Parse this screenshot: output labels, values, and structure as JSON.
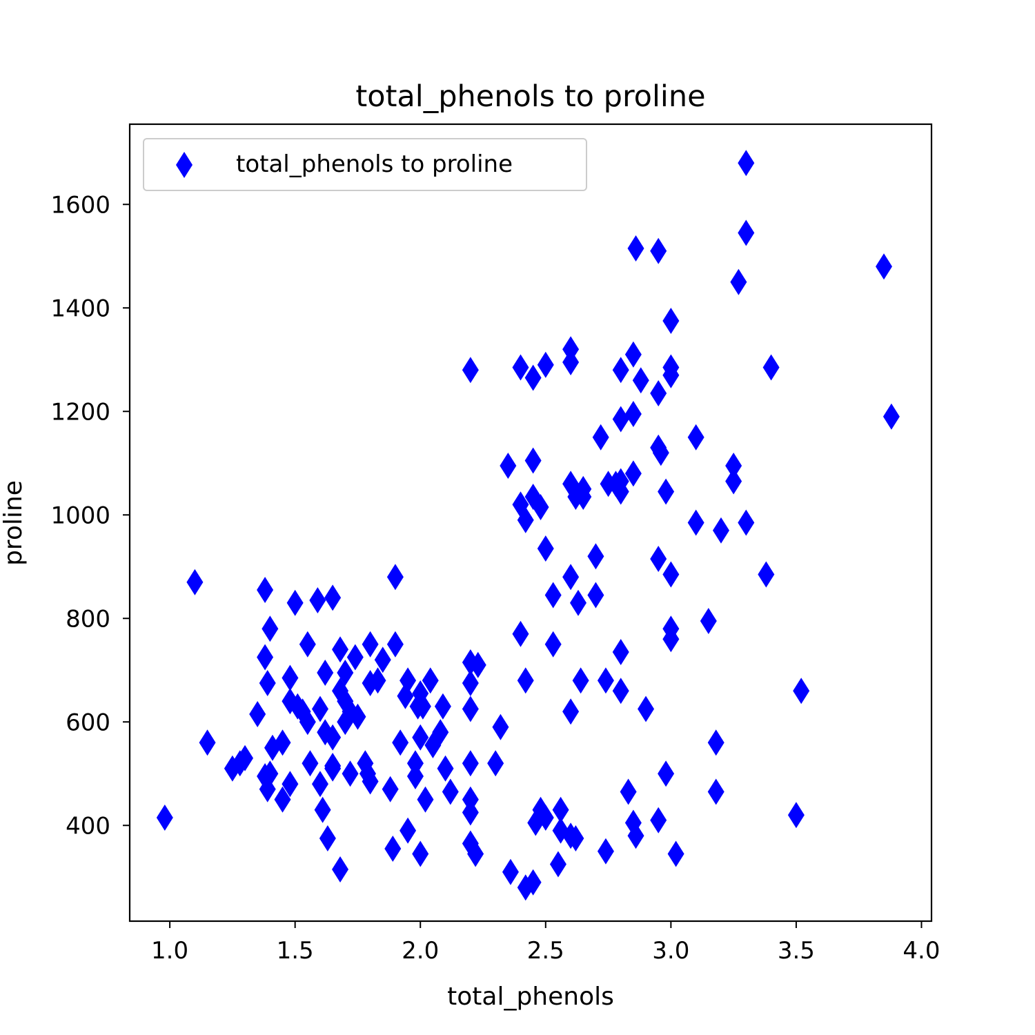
{
  "chart_data": {
    "type": "scatter",
    "title": "total_phenols to proline",
    "xlabel": "total_phenols",
    "ylabel": "proline",
    "xlim": [
      0.84,
      4.04
    ],
    "ylim": [
      215,
      1755
    ],
    "xticks": [
      1.0,
      1.5,
      2.0,
      2.5,
      3.0,
      3.5,
      4.0
    ],
    "xtick_labels": [
      "1.0",
      "1.5",
      "2.0",
      "2.5",
      "3.0",
      "3.5",
      "4.0"
    ],
    "yticks": [
      400,
      600,
      800,
      1000,
      1200,
      1400,
      1600
    ],
    "ytick_labels": [
      "400",
      "600",
      "800",
      "1000",
      "1200",
      "1400",
      "1600"
    ],
    "grid": false,
    "legend": {
      "position": "top-left"
    },
    "series": [
      {
        "name": "total_phenols to proline",
        "marker": "thin_diamond",
        "color": "#0000ff",
        "points": [
          [
            0.98,
            415
          ],
          [
            1.1,
            870
          ],
          [
            1.15,
            560
          ],
          [
            1.25,
            510
          ],
          [
            1.28,
            520
          ],
          [
            1.3,
            530
          ],
          [
            1.35,
            615
          ],
          [
            1.38,
            855
          ],
          [
            1.38,
            725
          ],
          [
            1.39,
            675
          ],
          [
            1.38,
            495
          ],
          [
            1.39,
            470
          ],
          [
            1.4,
            780
          ],
          [
            1.4,
            500
          ],
          [
            1.41,
            550
          ],
          [
            1.45,
            560
          ],
          [
            1.45,
            450
          ],
          [
            1.48,
            685
          ],
          [
            1.48,
            640
          ],
          [
            1.48,
            480
          ],
          [
            1.5,
            830
          ],
          [
            1.51,
            630
          ],
          [
            1.53,
            620
          ],
          [
            1.55,
            600
          ],
          [
            1.55,
            750
          ],
          [
            1.56,
            520
          ],
          [
            1.59,
            835
          ],
          [
            1.6,
            625
          ],
          [
            1.6,
            480
          ],
          [
            1.61,
            430
          ],
          [
            1.62,
            695
          ],
          [
            1.62,
            580
          ],
          [
            1.63,
            375
          ],
          [
            1.65,
            840
          ],
          [
            1.65,
            570
          ],
          [
            1.65,
            515
          ],
          [
            1.65,
            510
          ],
          [
            1.68,
            740
          ],
          [
            1.68,
            660
          ],
          [
            1.68,
            315
          ],
          [
            1.7,
            695
          ],
          [
            1.7,
            640
          ],
          [
            1.7,
            600
          ],
          [
            1.72,
            620
          ],
          [
            1.72,
            500
          ],
          [
            1.74,
            725
          ],
          [
            1.75,
            610
          ],
          [
            1.78,
            520
          ],
          [
            1.79,
            500
          ],
          [
            1.8,
            750
          ],
          [
            1.8,
            675
          ],
          [
            1.8,
            485
          ],
          [
            1.83,
            680
          ],
          [
            1.85,
            720
          ],
          [
            1.88,
            470
          ],
          [
            1.89,
            355
          ],
          [
            1.9,
            880
          ],
          [
            1.9,
            750
          ],
          [
            1.92,
            560
          ],
          [
            1.94,
            650
          ],
          [
            1.95,
            680
          ],
          [
            1.95,
            390
          ],
          [
            1.98,
            520
          ],
          [
            1.98,
            495
          ],
          [
            1.99,
            630
          ],
          [
            2.0,
            655
          ],
          [
            2.0,
            570
          ],
          [
            2.0,
            345
          ],
          [
            2.01,
            630
          ],
          [
            2.02,
            450
          ],
          [
            2.04,
            680
          ],
          [
            2.05,
            555
          ],
          [
            2.08,
            580
          ],
          [
            2.09,
            630
          ],
          [
            2.1,
            510
          ],
          [
            2.12,
            465
          ],
          [
            2.2,
            1280
          ],
          [
            2.2,
            715
          ],
          [
            2.2,
            675
          ],
          [
            2.2,
            625
          ],
          [
            2.2,
            520
          ],
          [
            2.2,
            450
          ],
          [
            2.2,
            425
          ],
          [
            2.2,
            365
          ],
          [
            2.22,
            345
          ],
          [
            2.23,
            710
          ],
          [
            2.3,
            520
          ],
          [
            2.32,
            590
          ],
          [
            2.35,
            1095
          ],
          [
            2.36,
            310
          ],
          [
            2.4,
            1285
          ],
          [
            2.4,
            1020
          ],
          [
            2.4,
            770
          ],
          [
            2.42,
            990
          ],
          [
            2.42,
            680
          ],
          [
            2.42,
            280
          ],
          [
            2.45,
            1265
          ],
          [
            2.45,
            1105
          ],
          [
            2.45,
            1035
          ],
          [
            2.45,
            290
          ],
          [
            2.46,
            405
          ],
          [
            2.48,
            1015
          ],
          [
            2.48,
            430
          ],
          [
            2.5,
            1290
          ],
          [
            2.5,
            935
          ],
          [
            2.5,
            415
          ],
          [
            2.53,
            845
          ],
          [
            2.53,
            750
          ],
          [
            2.55,
            325
          ],
          [
            2.56,
            430
          ],
          [
            2.56,
            390
          ],
          [
            2.6,
            1320
          ],
          [
            2.6,
            1295
          ],
          [
            2.6,
            1060
          ],
          [
            2.6,
            880
          ],
          [
            2.6,
            620
          ],
          [
            2.6,
            380
          ],
          [
            2.62,
            1035
          ],
          [
            2.62,
            375
          ],
          [
            2.63,
            830
          ],
          [
            2.64,
            680
          ],
          [
            2.65,
            1050
          ],
          [
            2.65,
            1035
          ],
          [
            2.7,
            920
          ],
          [
            2.7,
            845
          ],
          [
            2.72,
            1150
          ],
          [
            2.74,
            680
          ],
          [
            2.74,
            350
          ],
          [
            2.75,
            1060
          ],
          [
            2.78,
            1060
          ],
          [
            2.8,
            1280
          ],
          [
            2.8,
            1185
          ],
          [
            2.8,
            1065
          ],
          [
            2.8,
            1045
          ],
          [
            2.8,
            735
          ],
          [
            2.8,
            660
          ],
          [
            2.83,
            465
          ],
          [
            2.85,
            1310
          ],
          [
            2.85,
            1195
          ],
          [
            2.85,
            1080
          ],
          [
            2.85,
            405
          ],
          [
            2.86,
            1515
          ],
          [
            2.86,
            380
          ],
          [
            2.88,
            1260
          ],
          [
            2.9,
            625
          ],
          [
            2.95,
            1510
          ],
          [
            2.95,
            1235
          ],
          [
            2.95,
            1130
          ],
          [
            2.96,
            1120
          ],
          [
            2.95,
            915
          ],
          [
            2.95,
            410
          ],
          [
            2.98,
            1045
          ],
          [
            2.98,
            500
          ],
          [
            3.0,
            1375
          ],
          [
            3.0,
            1285
          ],
          [
            3.0,
            1270
          ],
          [
            3.0,
            885
          ],
          [
            3.0,
            780
          ],
          [
            3.0,
            760
          ],
          [
            3.02,
            345
          ],
          [
            3.1,
            1150
          ],
          [
            3.1,
            985
          ],
          [
            3.15,
            795
          ],
          [
            3.18,
            560
          ],
          [
            3.18,
            465
          ],
          [
            3.2,
            970
          ],
          [
            3.25,
            1095
          ],
          [
            3.25,
            1065
          ],
          [
            3.27,
            1450
          ],
          [
            3.3,
            1680
          ],
          [
            3.3,
            1545
          ],
          [
            3.3,
            985
          ],
          [
            3.38,
            885
          ],
          [
            3.4,
            1285
          ],
          [
            3.5,
            420
          ],
          [
            3.52,
            660
          ],
          [
            3.85,
            1480
          ],
          [
            3.88,
            1190
          ]
        ]
      }
    ]
  }
}
